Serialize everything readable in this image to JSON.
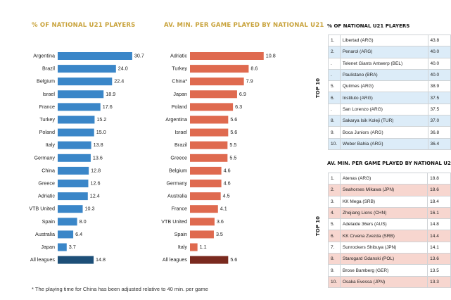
{
  "chart_data": [
    {
      "type": "bar",
      "orientation": "horizontal",
      "title": "% OF NATIONAL U21 PLAYERS",
      "categories": [
        "Argentina",
        "Brazil",
        "Belgium",
        "Israel",
        "France",
        "Turkey",
        "Poland",
        "Italy",
        "Germany",
        "China",
        "Greece",
        "Adriatic",
        "VTB United",
        "Spain",
        "Australia",
        "Japan",
        "All leagues"
      ],
      "values": [
        30.7,
        24.0,
        22.4,
        18.9,
        17.6,
        15.2,
        15.0,
        13.8,
        13.6,
        12.8,
        12.6,
        12.4,
        10.3,
        8.0,
        6.4,
        3.7,
        14.8
      ],
      "value_labels": [
        "30.7",
        "24.0",
        "22.4",
        "18.9",
        "17.6",
        "15.2",
        "15.0",
        "13.8",
        "13.6",
        "12.8",
        "12.6",
        "12.4",
        "10.3",
        "8.0",
        "6.4",
        "3.7",
        "14.8"
      ],
      "colors": {
        "bar": "#3a86c8",
        "highlight": "#1d4f78"
      },
      "highlight_category": "All leagues"
    },
    {
      "type": "bar",
      "orientation": "horizontal",
      "title": "AV. MIN. PER GAME PLAYED BY NATIONAL U21",
      "categories": [
        "Adriatic",
        "Turkey",
        "China*",
        "Japan",
        "Poland",
        "Argentina",
        "Israel",
        "Brazil",
        "Greece",
        "Belgium",
        "Germany",
        "Australia",
        "France",
        "VTB United",
        "Spain",
        "Italy",
        "All leagues"
      ],
      "values": [
        10.8,
        8.6,
        7.9,
        6.9,
        6.3,
        5.6,
        5.6,
        5.5,
        5.5,
        4.6,
        4.6,
        4.5,
        4.1,
        3.6,
        3.5,
        1.1,
        5.6
      ],
      "value_labels": [
        "10.8",
        "8.6",
        "7.9",
        "6.9",
        "6.3",
        "5.6",
        "5.6",
        "5.5",
        "5.5",
        "4.6",
        "4.6",
        "4.5",
        "4.1",
        "3.6",
        "3.5",
        "1.1",
        "5.6"
      ],
      "colors": {
        "bar": "#df6a4f",
        "highlight": "#7a2a1f"
      },
      "highlight_category": "All leagues"
    }
  ],
  "table_national": {
    "title": "% OF NATIONAL U21 PLAYERS",
    "side_label": "TOP 10",
    "rows": [
      {
        "rank": "1.",
        "team": "Libertad (ARG)",
        "value": "43.8"
      },
      {
        "rank": "2.",
        "team": "Penarol (ARG)",
        "value": "40.0"
      },
      {
        "rank": ".",
        "team": "Telenet Giants Antwerp (BEL)",
        "value": "40.0"
      },
      {
        "rank": ".",
        "team": "Paulistano (BRA)",
        "value": "40.0"
      },
      {
        "rank": "5.",
        "team": "Quilmes (ARG)",
        "value": "38.9"
      },
      {
        "rank": "6.",
        "team": "Instituto (ARG)",
        "value": "37.5"
      },
      {
        "rank": ".",
        "team": "San Lorenzo (ARG)",
        "value": "37.5"
      },
      {
        "rank": "8.",
        "team": "Sakarya Isik Koleji (TUR)",
        "value": "37.0"
      },
      {
        "rank": "9.",
        "team": "Boca Juniors (ARG)",
        "value": "36.8"
      },
      {
        "rank": "10.",
        "team": "Weber Bahia (ARG)",
        "value": "36.4"
      }
    ]
  },
  "table_minutes": {
    "title": "AV. MIN. PER GAME PLAYED BY NATIONAL U21",
    "side_label": "TOP 10",
    "rows": [
      {
        "rank": "1.",
        "team": "Atenas (ARG)",
        "value": "18.8"
      },
      {
        "rank": "2.",
        "team": "Seahorses Mikawa (JPN)",
        "value": "18.6"
      },
      {
        "rank": "3.",
        "team": "KK Mega (SRB)",
        "value": "18.4"
      },
      {
        "rank": "4.",
        "team": "Zhejiang Lions (CHN)",
        "value": "16.1"
      },
      {
        "rank": "5.",
        "team": "Adelaide 36ers (AUS)",
        "value": "14.8"
      },
      {
        "rank": "6.",
        "team": "KK Crvena Zvezda (SRB)",
        "value": "14.4"
      },
      {
        "rank": "7.",
        "team": "Sunrockers Shibuya (JPN)",
        "value": "14.1"
      },
      {
        "rank": "8.",
        "team": "Starogard Gdanski (POL)",
        "value": "13.6"
      },
      {
        "rank": "9.",
        "team": "Brose Bamberg (GER)",
        "value": "13.5"
      },
      {
        "rank": "10.",
        "team": "Osaka Evessa (JPN)",
        "value": "13.3"
      }
    ]
  },
  "footnote": "* The playing time for China has been adjusted relative to 40 min. per game",
  "colors": {
    "title_gold": "#c8a23a",
    "table_blue_alt": "#dcecf8",
    "table_red_alt": "#f7d6cf"
  }
}
